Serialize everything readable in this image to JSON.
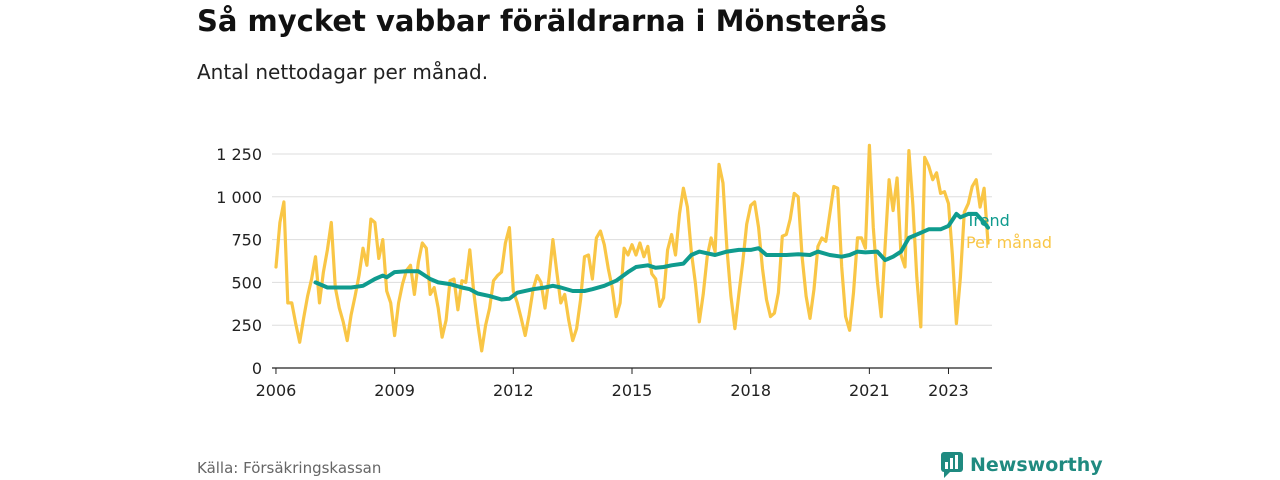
{
  "title": "Så mycket vabbar föräldrarna i Mönsterås",
  "subtitle": "Antal nettodagar per månad.",
  "source": "Källa: Försäkringskassan",
  "brand": {
    "name": "Newsworthy",
    "icon": "newsworthy-logo-icon",
    "color": "#1f8a80"
  },
  "colors": {
    "trend": "#0f9b8e",
    "monthly": "#f9c646",
    "grid": "#dddddd",
    "axis": "#222222"
  },
  "chart_data": {
    "type": "line",
    "title": "Så mycket vabbar föräldrarna i Mönsterås",
    "ylabel": "",
    "xlabel": "",
    "ylim": [
      0,
      1250
    ],
    "xlim": [
      2005.9,
      2024.1
    ],
    "y_ticks": [
      {
        "value": 0,
        "label": "0"
      },
      {
        "value": 250,
        "label": "250"
      },
      {
        "value": 500,
        "label": "500"
      },
      {
        "value": 750,
        "label": "750"
      },
      {
        "value": 1000,
        "label": "1 000"
      },
      {
        "value": 1250,
        "label": "1 250"
      }
    ],
    "x_ticks": [
      {
        "value": 2006,
        "label": "2006"
      },
      {
        "value": 2009,
        "label": "2009"
      },
      {
        "value": 2012,
        "label": "2012"
      },
      {
        "value": 2015,
        "label": "2015"
      },
      {
        "value": 2018,
        "label": "2018"
      },
      {
        "value": 2021,
        "label": "2021"
      },
      {
        "value": 2023,
        "label": "2023"
      }
    ],
    "grid": true,
    "series": [
      {
        "name": "Per månad",
        "color": "#f9c646",
        "points": [
          [
            2006.0,
            590
          ],
          [
            2006.1,
            850
          ],
          [
            2006.2,
            970
          ],
          [
            2006.3,
            380
          ],
          [
            2006.4,
            380
          ],
          [
            2006.5,
            260
          ],
          [
            2006.6,
            150
          ],
          [
            2006.7,
            290
          ],
          [
            2006.8,
            420
          ],
          [
            2006.9,
            520
          ],
          [
            2007.0,
            650
          ],
          [
            2007.1,
            380
          ],
          [
            2007.2,
            560
          ],
          [
            2007.3,
            690
          ],
          [
            2007.4,
            850
          ],
          [
            2007.5,
            470
          ],
          [
            2007.6,
            350
          ],
          [
            2007.7,
            270
          ],
          [
            2007.8,
            160
          ],
          [
            2007.9,
            310
          ],
          [
            2008.0,
            420
          ],
          [
            2008.1,
            540
          ],
          [
            2008.2,
            700
          ],
          [
            2008.3,
            600
          ],
          [
            2008.4,
            870
          ],
          [
            2008.5,
            850
          ],
          [
            2008.6,
            640
          ],
          [
            2008.7,
            750
          ],
          [
            2008.8,
            450
          ],
          [
            2008.9,
            380
          ],
          [
            2009.0,
            190
          ],
          [
            2009.1,
            380
          ],
          [
            2009.2,
            490
          ],
          [
            2009.3,
            570
          ],
          [
            2009.4,
            600
          ],
          [
            2009.5,
            430
          ],
          [
            2009.6,
            620
          ],
          [
            2009.7,
            730
          ],
          [
            2009.8,
            700
          ],
          [
            2009.9,
            430
          ],
          [
            2010.0,
            470
          ],
          [
            2010.1,
            350
          ],
          [
            2010.2,
            180
          ],
          [
            2010.3,
            280
          ],
          [
            2010.4,
            510
          ],
          [
            2010.5,
            520
          ],
          [
            2010.6,
            340
          ],
          [
            2010.7,
            510
          ],
          [
            2010.8,
            500
          ],
          [
            2010.9,
            690
          ],
          [
            2011.0,
            440
          ],
          [
            2011.1,
            260
          ],
          [
            2011.2,
            100
          ],
          [
            2011.3,
            250
          ],
          [
            2011.4,
            350
          ],
          [
            2011.5,
            510
          ],
          [
            2011.6,
            540
          ],
          [
            2011.7,
            560
          ],
          [
            2011.8,
            730
          ],
          [
            2011.9,
            820
          ],
          [
            2012.0,
            450
          ],
          [
            2012.1,
            380
          ],
          [
            2012.2,
            290
          ],
          [
            2012.3,
            190
          ],
          [
            2012.4,
            310
          ],
          [
            2012.5,
            460
          ],
          [
            2012.6,
            540
          ],
          [
            2012.7,
            500
          ],
          [
            2012.8,
            350
          ],
          [
            2012.9,
            520
          ],
          [
            2013.0,
            750
          ],
          [
            2013.1,
            560
          ],
          [
            2013.2,
            380
          ],
          [
            2013.3,
            430
          ],
          [
            2013.4,
            280
          ],
          [
            2013.5,
            160
          ],
          [
            2013.6,
            230
          ],
          [
            2013.7,
            400
          ],
          [
            2013.8,
            650
          ],
          [
            2013.9,
            660
          ],
          [
            2014.0,
            520
          ],
          [
            2014.1,
            760
          ],
          [
            2014.2,
            800
          ],
          [
            2014.3,
            720
          ],
          [
            2014.4,
            580
          ],
          [
            2014.5,
            470
          ],
          [
            2014.6,
            300
          ],
          [
            2014.7,
            380
          ],
          [
            2014.8,
            700
          ],
          [
            2014.9,
            660
          ],
          [
            2015.0,
            720
          ],
          [
            2015.1,
            660
          ],
          [
            2015.2,
            730
          ],
          [
            2015.3,
            650
          ],
          [
            2015.4,
            710
          ],
          [
            2015.5,
            550
          ],
          [
            2015.6,
            520
          ],
          [
            2015.7,
            360
          ],
          [
            2015.8,
            410
          ],
          [
            2015.9,
            690
          ],
          [
            2016.0,
            780
          ],
          [
            2016.1,
            660
          ],
          [
            2016.2,
            900
          ],
          [
            2016.3,
            1050
          ],
          [
            2016.4,
            940
          ],
          [
            2016.5,
            680
          ],
          [
            2016.6,
            500
          ],
          [
            2016.7,
            270
          ],
          [
            2016.8,
            430
          ],
          [
            2016.9,
            650
          ],
          [
            2017.0,
            760
          ],
          [
            2017.1,
            680
          ],
          [
            2017.2,
            1190
          ],
          [
            2017.3,
            1080
          ],
          [
            2017.4,
            700
          ],
          [
            2017.5,
            420
          ],
          [
            2017.6,
            230
          ],
          [
            2017.7,
            430
          ],
          [
            2017.8,
            620
          ],
          [
            2017.9,
            840
          ],
          [
            2018.0,
            950
          ],
          [
            2018.1,
            970
          ],
          [
            2018.2,
            820
          ],
          [
            2018.3,
            580
          ],
          [
            2018.4,
            400
          ],
          [
            2018.5,
            300
          ],
          [
            2018.6,
            320
          ],
          [
            2018.7,
            440
          ],
          [
            2018.8,
            770
          ],
          [
            2018.9,
            780
          ],
          [
            2019.0,
            870
          ],
          [
            2019.1,
            1020
          ],
          [
            2019.2,
            1000
          ],
          [
            2019.3,
            650
          ],
          [
            2019.4,
            420
          ],
          [
            2019.5,
            290
          ],
          [
            2019.6,
            460
          ],
          [
            2019.7,
            710
          ],
          [
            2019.8,
            760
          ],
          [
            2019.9,
            740
          ],
          [
            2020.0,
            900
          ],
          [
            2020.1,
            1060
          ],
          [
            2020.2,
            1050
          ],
          [
            2020.3,
            590
          ],
          [
            2020.4,
            300
          ],
          [
            2020.5,
            220
          ],
          [
            2020.6,
            440
          ],
          [
            2020.7,
            760
          ],
          [
            2020.8,
            760
          ],
          [
            2020.9,
            700
          ],
          [
            2021.0,
            1300
          ],
          [
            2021.1,
            820
          ],
          [
            2021.2,
            510
          ],
          [
            2021.3,
            300
          ],
          [
            2021.4,
            720
          ],
          [
            2021.5,
            1100
          ],
          [
            2021.6,
            920
          ],
          [
            2021.7,
            1110
          ],
          [
            2021.8,
            660
          ],
          [
            2021.9,
            590
          ],
          [
            2022.0,
            1270
          ],
          [
            2022.1,
            950
          ],
          [
            2022.2,
            530
          ],
          [
            2022.3,
            240
          ],
          [
            2022.4,
            1230
          ],
          [
            2022.5,
            1180
          ],
          [
            2022.6,
            1100
          ],
          [
            2022.7,
            1140
          ],
          [
            2022.8,
            1020
          ],
          [
            2022.9,
            1030
          ],
          [
            2023.0,
            960
          ],
          [
            2023.1,
            660
          ],
          [
            2023.2,
            260
          ],
          [
            2023.3,
            530
          ],
          [
            2023.4,
            910
          ],
          [
            2023.5,
            960
          ],
          [
            2023.6,
            1060
          ],
          [
            2023.7,
            1100
          ],
          [
            2023.8,
            940
          ],
          [
            2023.9,
            1050
          ],
          [
            2024.0,
            730
          ]
        ]
      },
      {
        "name": "Trend",
        "color": "#0f9b8e",
        "points": [
          [
            2007.0,
            500
          ],
          [
            2007.3,
            470
          ],
          [
            2007.6,
            470
          ],
          [
            2007.9,
            470
          ],
          [
            2008.2,
            480
          ],
          [
            2008.5,
            520
          ],
          [
            2008.7,
            540
          ],
          [
            2008.8,
            530
          ],
          [
            2009.0,
            560
          ],
          [
            2009.3,
            565
          ],
          [
            2009.6,
            565
          ],
          [
            2009.9,
            520
          ],
          [
            2010.1,
            500
          ],
          [
            2010.4,
            490
          ],
          [
            2010.7,
            470
          ],
          [
            2010.9,
            460
          ],
          [
            2011.1,
            435
          ],
          [
            2011.4,
            420
          ],
          [
            2011.7,
            400
          ],
          [
            2011.9,
            405
          ],
          [
            2012.1,
            440
          ],
          [
            2012.5,
            460
          ],
          [
            2012.8,
            470
          ],
          [
            2013.0,
            480
          ],
          [
            2013.2,
            470
          ],
          [
            2013.5,
            450
          ],
          [
            2013.8,
            450
          ],
          [
            2014.0,
            460
          ],
          [
            2014.3,
            480
          ],
          [
            2014.6,
            510
          ],
          [
            2014.9,
            560
          ],
          [
            2015.1,
            590
          ],
          [
            2015.4,
            600
          ],
          [
            2015.6,
            585
          ],
          [
            2015.8,
            590
          ],
          [
            2016.0,
            600
          ],
          [
            2016.3,
            610
          ],
          [
            2016.5,
            660
          ],
          [
            2016.7,
            680
          ],
          [
            2016.9,
            670
          ],
          [
            2017.1,
            660
          ],
          [
            2017.4,
            680
          ],
          [
            2017.7,
            690
          ],
          [
            2018.0,
            690
          ],
          [
            2018.2,
            700
          ],
          [
            2018.4,
            660
          ],
          [
            2018.6,
            660
          ],
          [
            2018.9,
            660
          ],
          [
            2019.2,
            665
          ],
          [
            2019.5,
            660
          ],
          [
            2019.7,
            680
          ],
          [
            2020.0,
            660
          ],
          [
            2020.3,
            650
          ],
          [
            2020.5,
            660
          ],
          [
            2020.7,
            680
          ],
          [
            2020.9,
            675
          ],
          [
            2021.2,
            680
          ],
          [
            2021.4,
            630
          ],
          [
            2021.6,
            650
          ],
          [
            2021.8,
            680
          ],
          [
            2022.0,
            760
          ],
          [
            2022.3,
            790
          ],
          [
            2022.5,
            810
          ],
          [
            2022.8,
            810
          ],
          [
            2023.0,
            830
          ],
          [
            2023.2,
            900
          ],
          [
            2023.3,
            880
          ],
          [
            2023.5,
            900
          ],
          [
            2023.7,
            900
          ],
          [
            2023.9,
            850
          ],
          [
            2024.0,
            820
          ]
        ]
      }
    ],
    "legend": {
      "placement": "right, at line ends",
      "labels": [
        "Trend",
        "Per månad"
      ]
    }
  }
}
